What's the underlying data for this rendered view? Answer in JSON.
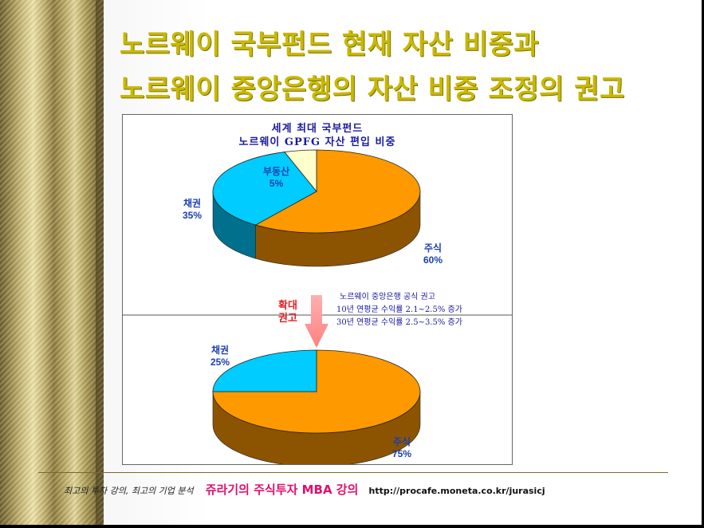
{
  "slide": {
    "title_line1": "노르웨이 국부펀드 현재 자산 비중과",
    "title_line2": "노르웨이 중앙은행의 자산 비중 조정의 권고"
  },
  "chart_data": [
    {
      "type": "pie",
      "title": "세계 최대 국부펀드",
      "subtitle": "노르웨이 GPFG 자산 편입 비중",
      "slices": [
        {
          "label": "주식",
          "value": 60,
          "display": "60%",
          "color": "#ff9900"
        },
        {
          "label": "채권",
          "value": 35,
          "display": "35%",
          "color": "#00ccff"
        },
        {
          "label": "부동산",
          "value": 5,
          "display": "5%",
          "color": "#ffffcc"
        }
      ]
    },
    {
      "type": "pie",
      "slices": [
        {
          "label": "주식",
          "value": 75,
          "display": "75%",
          "color": "#ff9900"
        },
        {
          "label": "채권",
          "value": 25,
          "display": "25%",
          "color": "#00ccff"
        }
      ]
    }
  ],
  "annotation": {
    "arrow_label": "확대 권고",
    "note_title": "노르웨이 중앙은행 공식 권고",
    "note_line1": "10년 연평균 수익률 2.1~2.5% 증가",
    "note_line2": "30년 연평균 수익률 2.5~3.5% 증가"
  },
  "footer": {
    "tagline": "최고의 투자 강의, 최고의 기업 분석",
    "brand": "쥬라기의 주식투자 MBA 강의",
    "url": "http://procafe.moneta.co.kr/jurasicj"
  }
}
